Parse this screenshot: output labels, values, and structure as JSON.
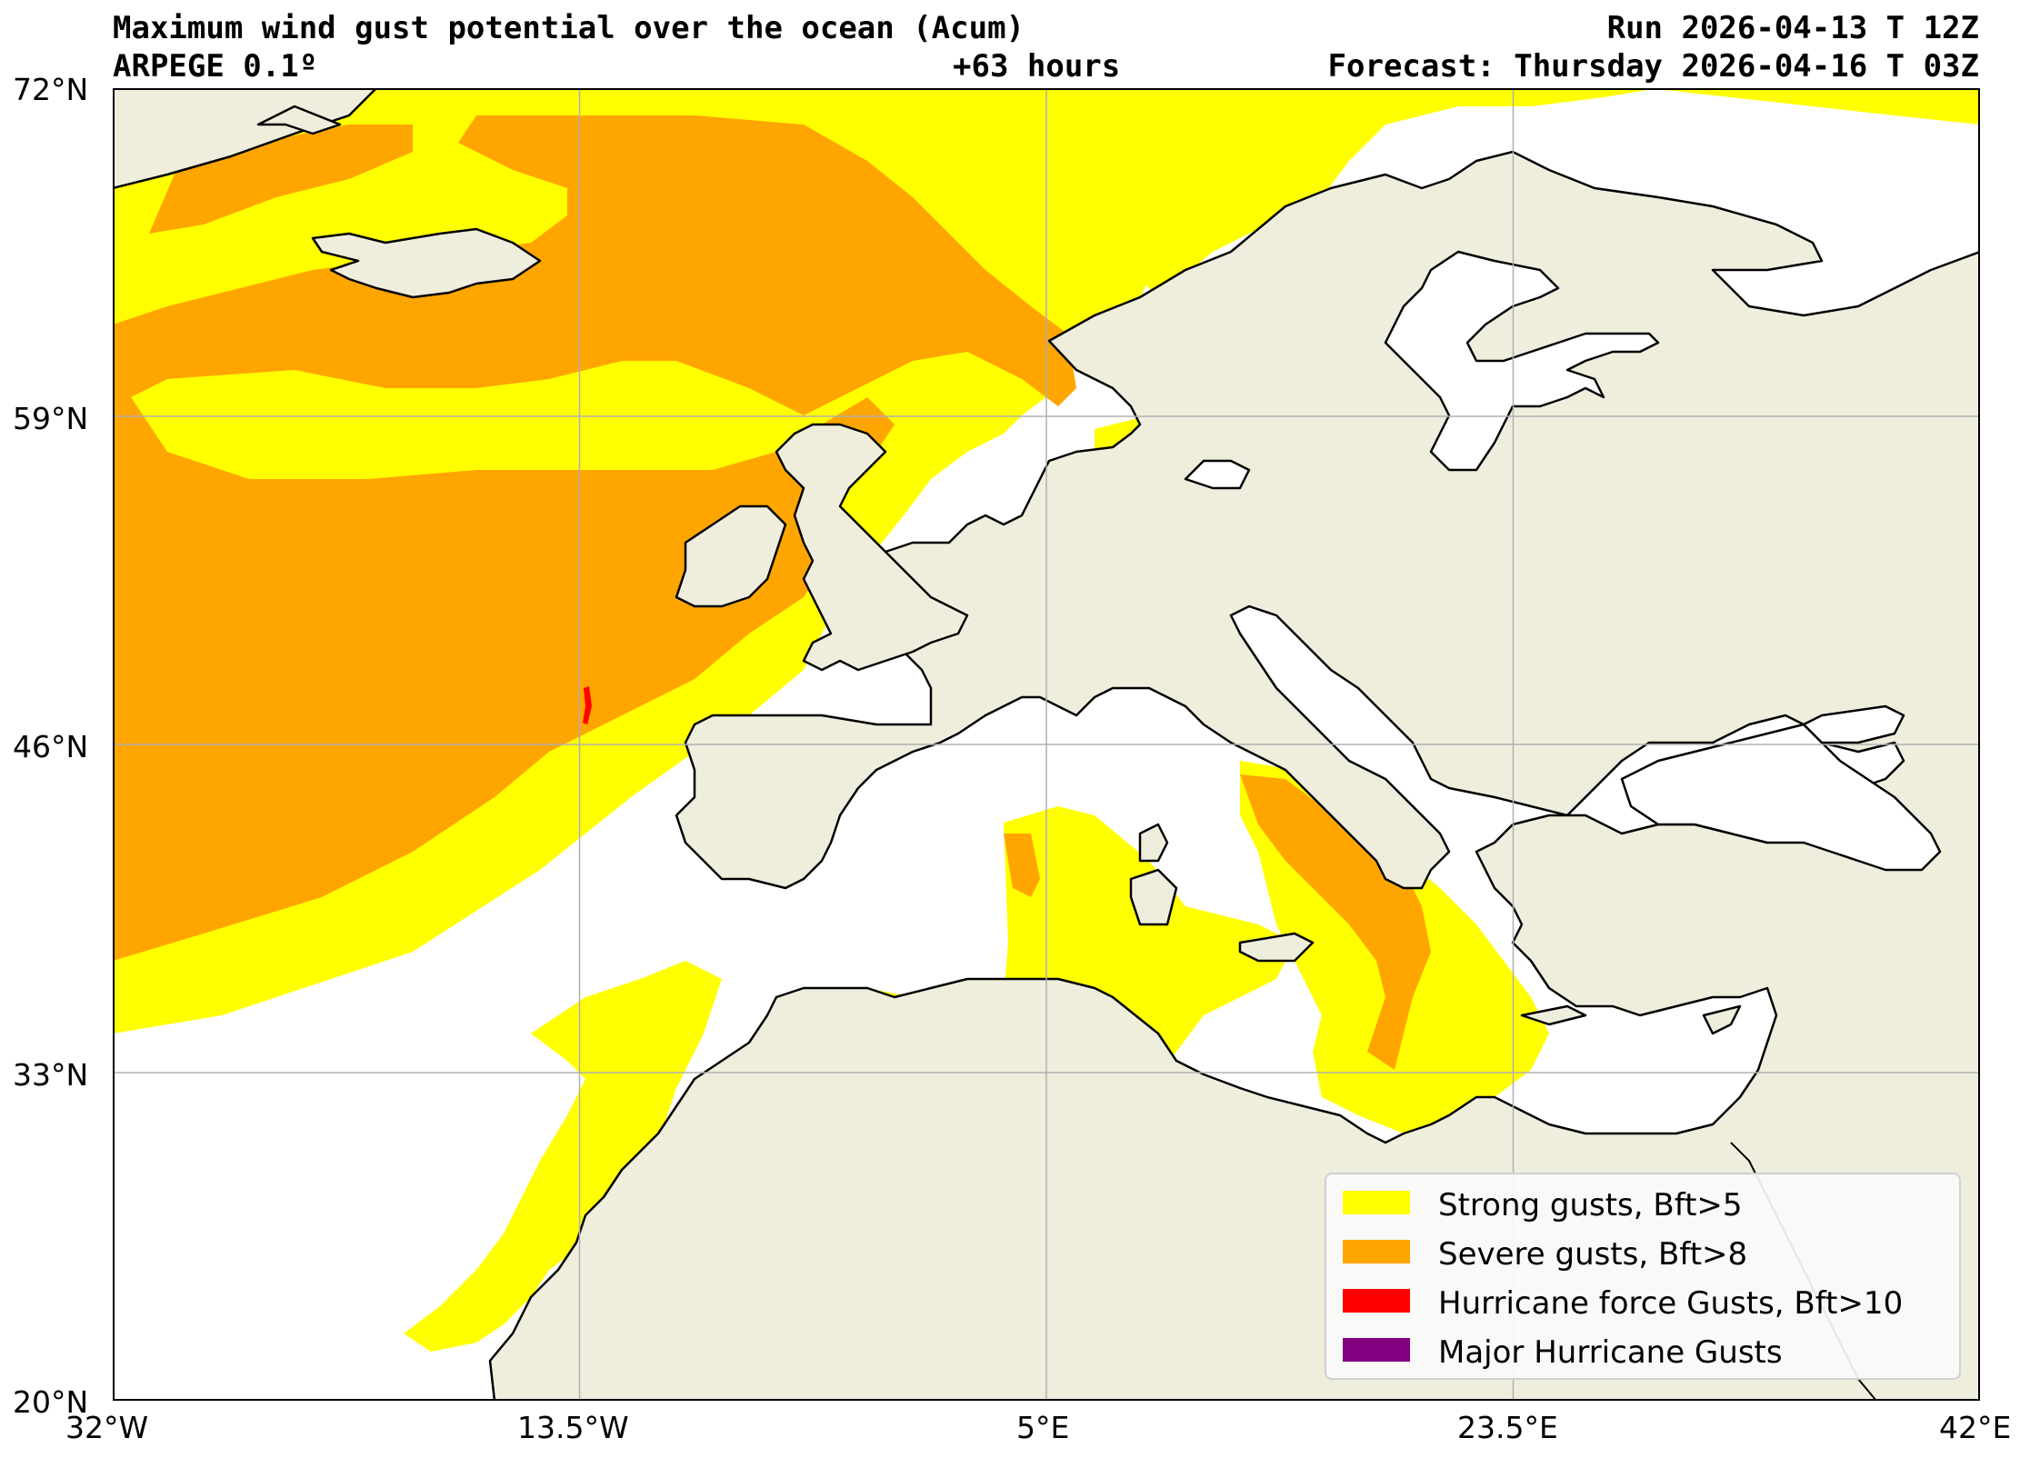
{
  "header": {
    "title_left": "Maximum wind gust potential over the ocean (Acum)",
    "title_right": "Run 2026-04-13 T 12Z",
    "model": "ARPEGE 0.1º",
    "lead_time": "+63 hours",
    "forecast": "Forecast: Thursday 2026-04-16 T 03Z"
  },
  "axes": {
    "lat_ticks": [
      "72°N",
      "59°N",
      "46°N",
      "33°N",
      "20°N"
    ],
    "lon_ticks": [
      "32°W",
      "13.5°W",
      "5°E",
      "23.5°E",
      "42°E"
    ]
  },
  "colors": {
    "strong": "#ffff00",
    "severe": "#ffa500",
    "hurricane": "#ff0000",
    "major": "#800080",
    "land": "#efeedd",
    "water": "#ffffff"
  },
  "legend": {
    "items": [
      {
        "label": "Strong gusts, Bft>5",
        "color": "#ffff00"
      },
      {
        "label": "Severe gusts, Bft>8",
        "color": "#ffa500"
      },
      {
        "label": "Hurricane force Gusts, Bft>10",
        "color": "#ff0000"
      },
      {
        "label": "Major Hurricane Gusts",
        "color": "#800080"
      }
    ]
  }
}
